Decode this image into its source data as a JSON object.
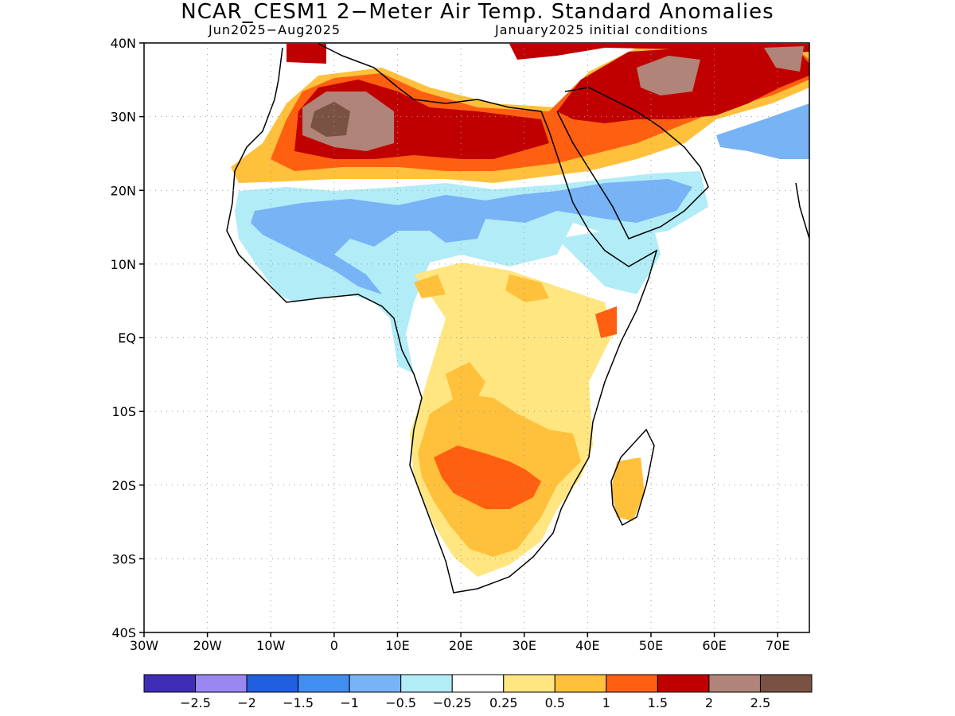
{
  "title": "NCAR_CESM1 2−Meter Air Temp. Standard Anomalies",
  "subtitle_left": "Jun2025−Aug2025",
  "subtitle_right": "January2025 initial conditions",
  "map": {
    "lon_range": [
      -30,
      75
    ],
    "lat_range": [
      -40,
      40
    ],
    "lat_ticks": [
      {
        "value": 40,
        "label": "40N"
      },
      {
        "value": 30,
        "label": "30N"
      },
      {
        "value": 20,
        "label": "20N"
      },
      {
        "value": 10,
        "label": "10N"
      },
      {
        "value": 0,
        "label": "EQ"
      },
      {
        "value": -10,
        "label": "10S"
      },
      {
        "value": -20,
        "label": "20S"
      },
      {
        "value": -30,
        "label": "30S"
      },
      {
        "value": -40,
        "label": "40S"
      }
    ],
    "lon_ticks": [
      {
        "value": -30,
        "label": "30W"
      },
      {
        "value": -20,
        "label": "20W"
      },
      {
        "value": -10,
        "label": "10W"
      },
      {
        "value": 0,
        "label": "0"
      },
      {
        "value": 10,
        "label": "10E"
      },
      {
        "value": 20,
        "label": "20E"
      },
      {
        "value": 30,
        "label": "30E"
      },
      {
        "value": 40,
        "label": "40E"
      },
      {
        "value": 50,
        "label": "50E"
      },
      {
        "value": 60,
        "label": "60E"
      },
      {
        "value": 70,
        "label": "70E"
      }
    ],
    "gridlines": true
  },
  "colorbar": {
    "colors": [
      "#3f2db8",
      "#9b87f2",
      "#1f5fe0",
      "#3f8ef0",
      "#78b3f5",
      "#b1ecf7",
      "#ffffff",
      "#ffe680",
      "#ffc03c",
      "#ff5f10",
      "#c00000",
      "#b08478",
      "#7a5244"
    ],
    "labels": [
      "−2.5",
      "−2",
      "−1.5",
      "−1",
      "−0.5",
      "−0.25",
      "0.25",
      "0.5",
      "1",
      "1.5",
      "2",
      "2.5"
    ]
  }
}
